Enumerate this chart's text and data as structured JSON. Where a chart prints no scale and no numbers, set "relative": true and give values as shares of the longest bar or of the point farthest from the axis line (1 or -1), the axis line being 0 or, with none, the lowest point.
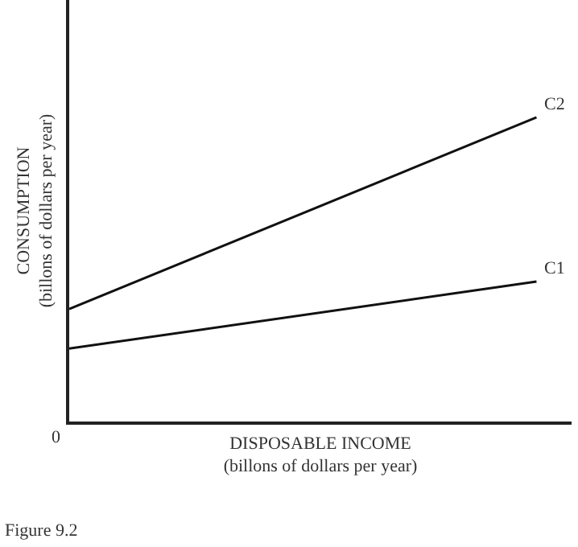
{
  "chart_data": {
    "type": "line",
    "relative": true,
    "categories": [
      null,
      null
    ],
    "xlabel": "DISPOSABLE INCOME\n(billons of dollars per year)",
    "ylabel": "CONSUMPTION\n(billons of dollars per year)",
    "series": [
      {
        "name": "C2",
        "color": "#111111",
        "values": [
          0.37,
          1
        ]
      },
      {
        "name": "C1",
        "color": "#111111",
        "values": [
          0.24,
          0.46
        ]
      }
    ],
    "annotations": [
      "0",
      "Figure 9.2"
    ],
    "legend": false,
    "marker": "none",
    "line_style": "solid"
  }
}
